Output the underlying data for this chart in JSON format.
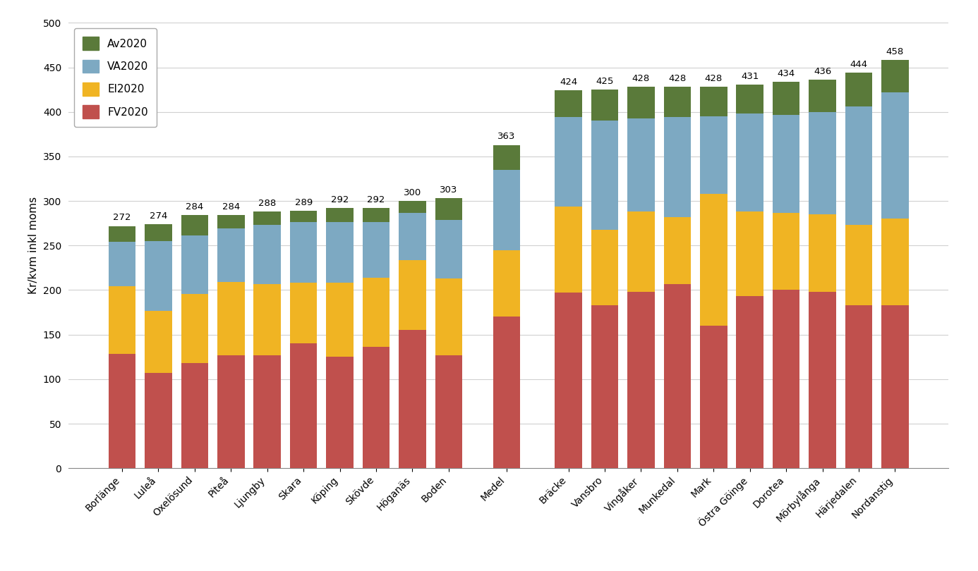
{
  "categories": [
    "Borlänge",
    "Luleå",
    "Oxelösund",
    "Piteå",
    "Ljungby",
    "Skara",
    "Köping",
    "Skövde",
    "Höganäs",
    "Boden",
    "Medel",
    "Bräcke",
    "Vansbro",
    "Vingåker",
    "Munkedal",
    "Mark",
    "Östra Göinge",
    "Dorotea",
    "Mörbylånga",
    "Härjedalen",
    "Nordanstig"
  ],
  "totals": [
    272,
    274,
    284,
    284,
    288,
    289,
    292,
    292,
    300,
    303,
    363,
    424,
    425,
    428,
    428,
    428,
    431,
    434,
    436,
    444,
    458
  ],
  "FV2020": [
    128,
    107,
    118,
    127,
    127,
    140,
    125,
    136,
    155,
    127,
    170,
    197,
    183,
    198,
    207,
    160,
    193,
    200,
    198,
    183,
    183
  ],
  "El2020": [
    76,
    70,
    78,
    82,
    80,
    68,
    83,
    78,
    79,
    86,
    75,
    97,
    85,
    90,
    75,
    148,
    95,
    87,
    87,
    90,
    97
  ],
  "VA2020": [
    50,
    78,
    65,
    60,
    66,
    68,
    68,
    62,
    53,
    66,
    90,
    100,
    122,
    105,
    112,
    87,
    110,
    110,
    115,
    133,
    142
  ],
  "Av2020": [
    18,
    19,
    23,
    15,
    15,
    13,
    16,
    16,
    13,
    24,
    28,
    30,
    35,
    35,
    34,
    33,
    33,
    37,
    36,
    38,
    36
  ],
  "colors": {
    "FV2020": "#c0504d",
    "El2020": "#f0b423",
    "VA2020": "#7da9c2",
    "Av2020": "#5a7a3a"
  },
  "ylabel": "Kr/kvm inkl moms",
  "ylim": [
    0,
    500
  ],
  "yticks": [
    0,
    50,
    100,
    150,
    200,
    250,
    300,
    350,
    400,
    450,
    500
  ],
  "background_color": "#ffffff",
  "grid_color": "#d0d0d0",
  "bar_width": 0.75,
  "label_fontsize": 9.5,
  "tick_fontsize": 10,
  "ylabel_fontsize": 11,
  "legend_fontsize": 11
}
